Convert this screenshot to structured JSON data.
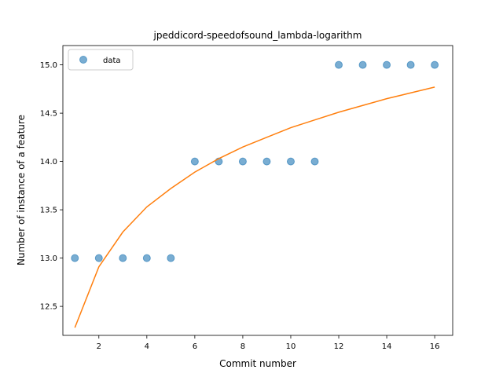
{
  "chart_data": {
    "type": "scatter",
    "title": "jpeddicord-speedofsound_lambda-logarithm",
    "xlabel": "Commit number",
    "ylabel": "Number of instance of a feature",
    "xlim": [
      0.5,
      16.75
    ],
    "ylim": [
      12.2,
      15.2
    ],
    "xticks": [
      2,
      4,
      6,
      8,
      10,
      12,
      14,
      16
    ],
    "yticks": [
      12.5,
      13.0,
      13.5,
      14.0,
      14.5,
      15.0
    ],
    "grid": false,
    "legend_position": "upper-left",
    "series": [
      {
        "name": "data",
        "kind": "scatter",
        "color": "#1f77b4",
        "x": [
          1,
          2,
          3,
          4,
          5,
          6,
          7,
          8,
          9,
          10,
          11,
          12,
          13,
          14,
          15,
          16
        ],
        "y": [
          13,
          13,
          13,
          13,
          13,
          14,
          14,
          14,
          14,
          14,
          14,
          15,
          15,
          15,
          15,
          15
        ]
      },
      {
        "kind": "line",
        "color": "#ff7f0e",
        "x": [
          1,
          2,
          3,
          4,
          5,
          6,
          7,
          8,
          9,
          10,
          11,
          12,
          13,
          14,
          15,
          16
        ],
        "y": [
          12.28,
          12.91,
          13.27,
          13.53,
          13.72,
          13.89,
          14.03,
          14.15,
          14.25,
          14.35,
          14.43,
          14.51,
          14.58,
          14.65,
          14.71,
          14.77
        ]
      }
    ]
  }
}
